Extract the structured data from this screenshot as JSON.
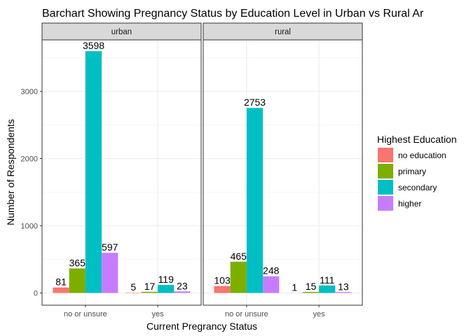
{
  "chart_data": {
    "type": "bar",
    "title": "Barchart Showing Pregnancy Status by Education Level in Urban vs Rural Ar",
    "xlabel": "Current Pregrancy Status",
    "ylabel": "Number of Respondents",
    "ylim": [
      0,
      3780
    ],
    "yticks": [
      0,
      1000,
      2000,
      3000
    ],
    "grid": true,
    "legend": {
      "title": "Highest Education",
      "position": "right",
      "entries": [
        {
          "label": "no education",
          "color": "#F8766D"
        },
        {
          "label": "primary",
          "color": "#7CAE00"
        },
        {
          "label": "secondary",
          "color": "#00BFC4"
        },
        {
          "label": "higher",
          "color": "#C77CFF"
        }
      ]
    },
    "categories": [
      "no or unsure",
      "yes"
    ],
    "panels": [
      {
        "label": "urban",
        "series": [
          {
            "name": "no education",
            "values": [
              81,
              5
            ]
          },
          {
            "name": "primary",
            "values": [
              365,
              17
            ]
          },
          {
            "name": "secondary",
            "values": [
              3598,
              119
            ]
          },
          {
            "name": "higher",
            "values": [
              597,
              23
            ]
          }
        ]
      },
      {
        "label": "rural",
        "series": [
          {
            "name": "no education",
            "values": [
              103,
              1
            ]
          },
          {
            "name": "primary",
            "values": [
              465,
              15
            ]
          },
          {
            "name": "secondary",
            "values": [
              2753,
              111
            ]
          },
          {
            "name": "higher",
            "values": [
              248,
              13
            ]
          }
        ]
      }
    ]
  }
}
